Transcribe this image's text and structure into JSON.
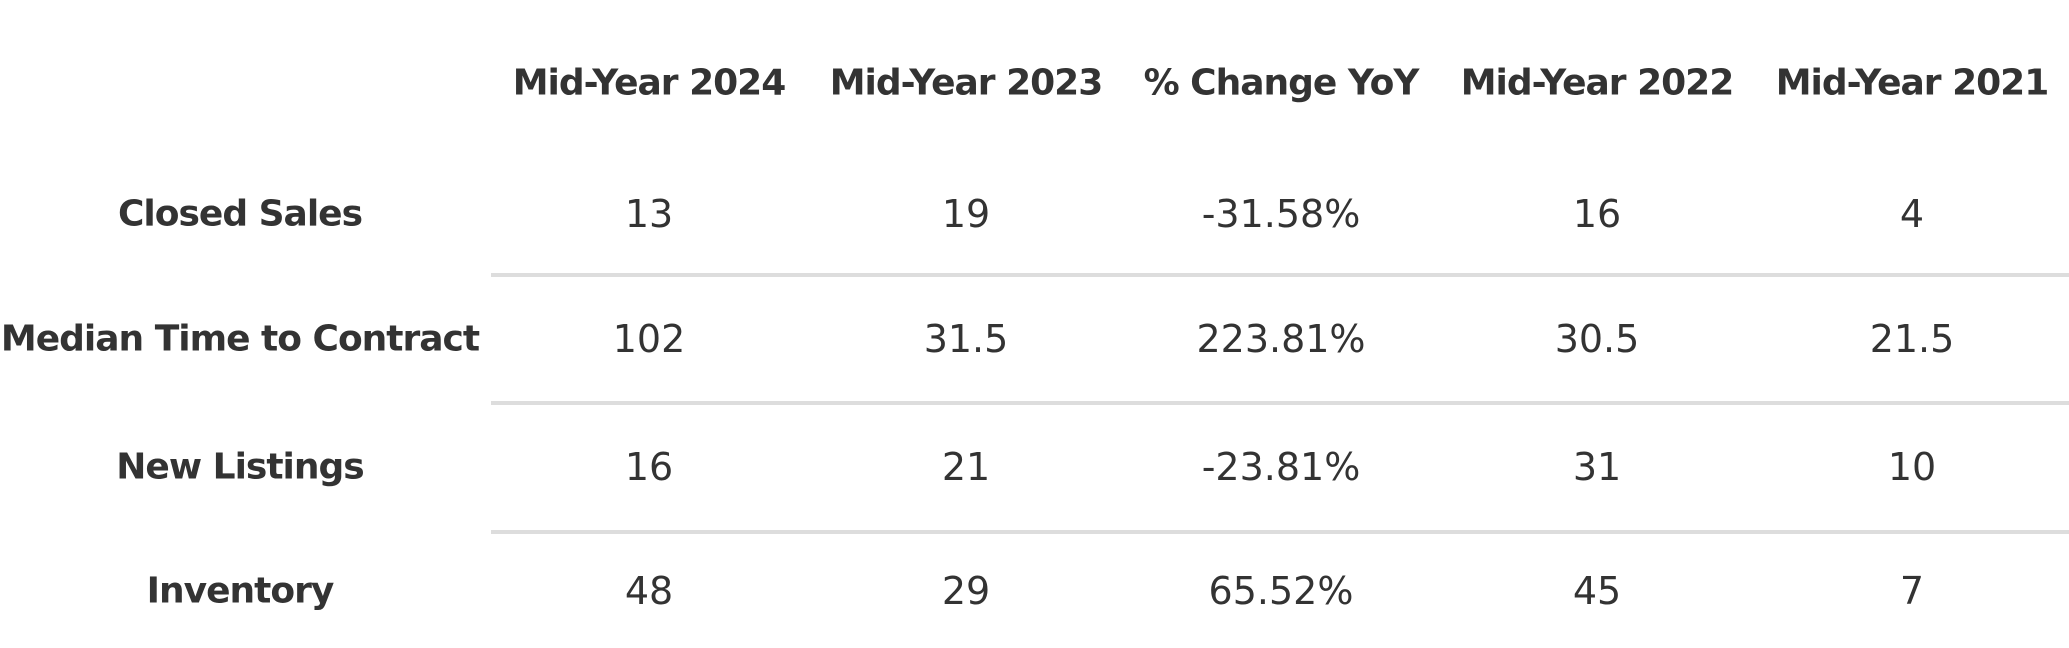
{
  "table": {
    "columns": [
      "Mid-Year 2024",
      "Mid-Year 2023",
      "% Change YoY",
      "Mid-Year 2022",
      "Mid-Year 2021"
    ],
    "rows": [
      {
        "label": "Closed Sales",
        "cells": [
          "13",
          "19",
          "-31.58%",
          "16",
          "4"
        ]
      },
      {
        "label": "Median Time to Contract",
        "cells": [
          "102",
          "31.5",
          "223.81%",
          "30.5",
          "21.5"
        ]
      },
      {
        "label": "New Listings",
        "cells": [
          "16",
          "21",
          "-23.81%",
          "31",
          "10"
        ]
      },
      {
        "label": "Inventory",
        "cells": [
          "48",
          "29",
          "65.52%",
          "45",
          "7"
        ]
      }
    ]
  }
}
